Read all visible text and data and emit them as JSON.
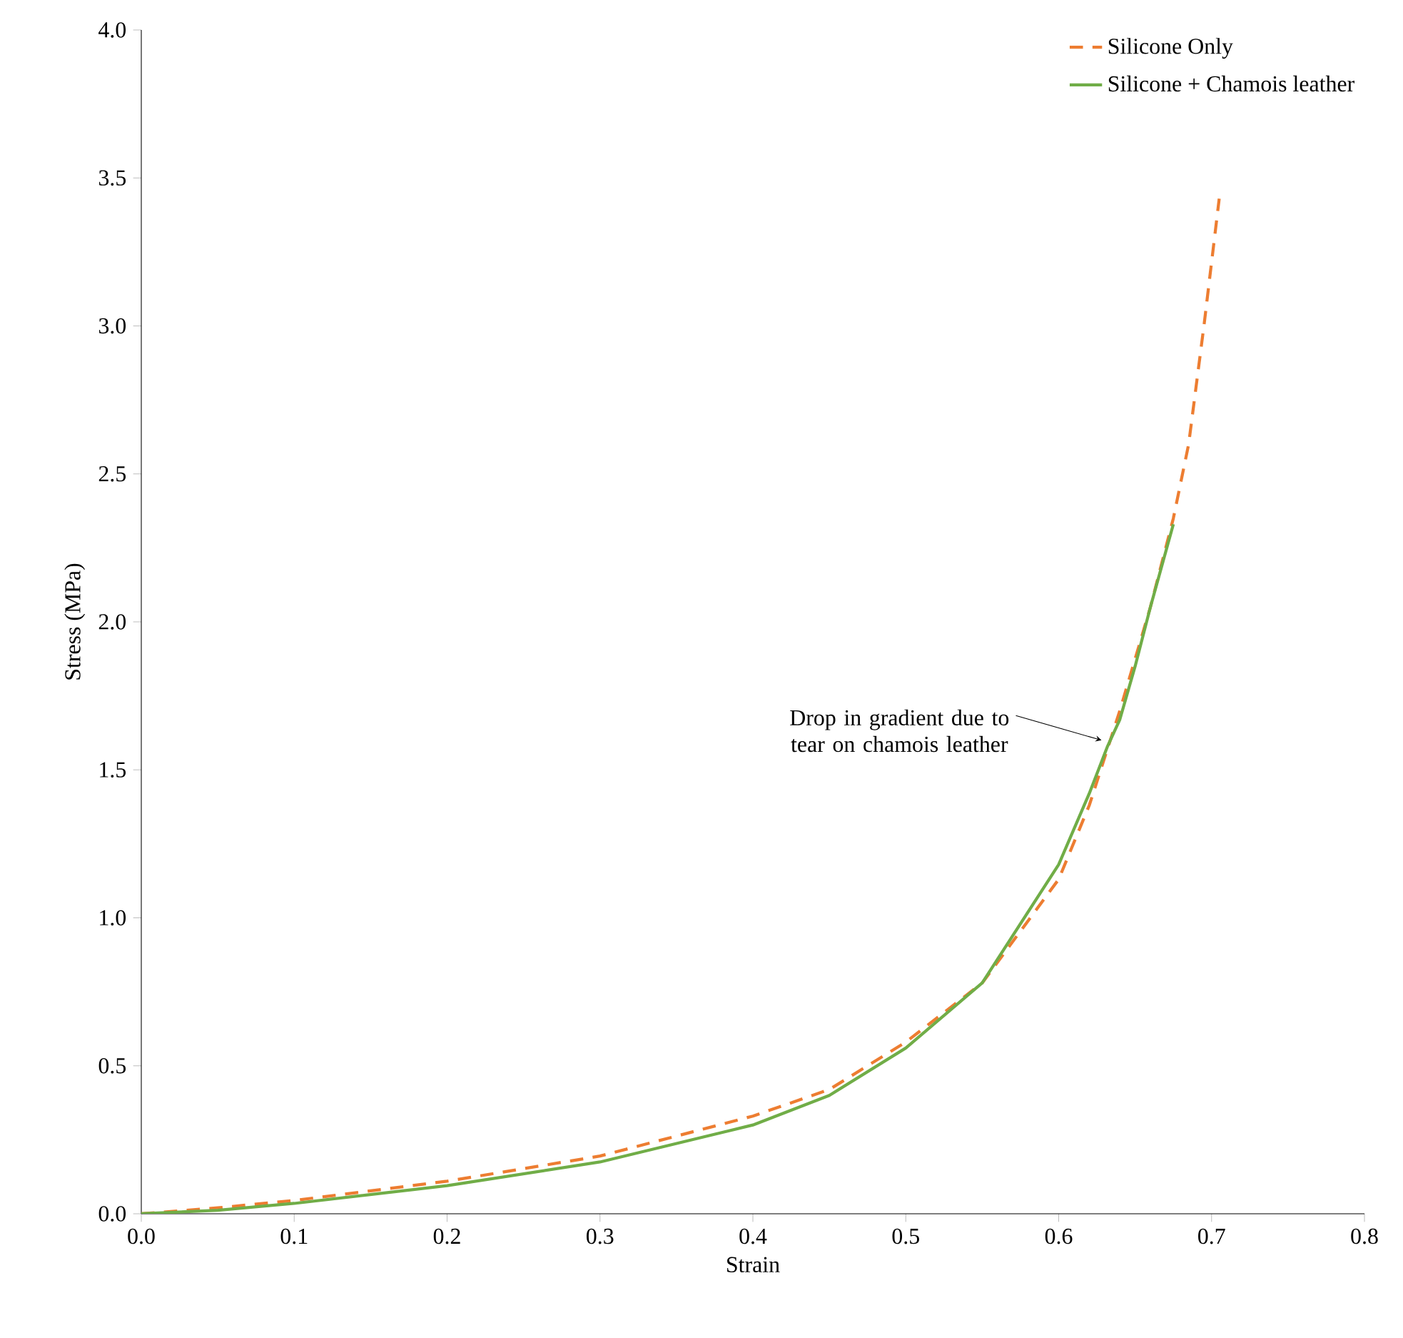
{
  "chart_data": {
    "type": "line",
    "xlabel": "Strain",
    "ylabel": "Stress (MPa)",
    "xlim": [
      0,
      0.8
    ],
    "ylim": [
      0,
      4
    ],
    "xticks": [
      {
        "value": 0,
        "label": "0.0"
      },
      {
        "value": 0.1,
        "label": "0.1"
      },
      {
        "value": 0.2,
        "label": "0.2"
      },
      {
        "value": 0.3,
        "label": "0.3"
      },
      {
        "value": 0.4,
        "label": "0.4"
      },
      {
        "value": 0.5,
        "label": "0.5"
      },
      {
        "value": 0.6,
        "label": "0.6"
      },
      {
        "value": 0.7,
        "label": "0.7"
      },
      {
        "value": 0.8,
        "label": "0.8"
      }
    ],
    "yticks": [
      {
        "value": 0,
        "label": "0.0"
      },
      {
        "value": 0.5,
        "label": "0.5"
      },
      {
        "value": 1,
        "label": "1.0"
      },
      {
        "value": 1.5,
        "label": "1.5"
      },
      {
        "value": 2,
        "label": "2.0"
      },
      {
        "value": 2.5,
        "label": "2.5"
      },
      {
        "value": 3,
        "label": "3.0"
      },
      {
        "value": 3.5,
        "label": "3.5"
      },
      {
        "value": 4,
        "label": "4.0"
      }
    ],
    "grid": false,
    "legend": "top right",
    "marker": "none",
    "series": [
      {
        "name": "Silicone Only",
        "color": "#ed7d31",
        "line_style": "dashed",
        "x": [
          0,
          0.05,
          0.1,
          0.2,
          0.3,
          0.4,
          0.45,
          0.5,
          0.55,
          0.6,
          0.62,
          0.64,
          0.66,
          0.675,
          0.685,
          0.695,
          0.705
        ],
        "values": [
          0,
          0.02,
          0.045,
          0.11,
          0.195,
          0.33,
          0.42,
          0.58,
          0.78,
          1.13,
          1.38,
          1.7,
          2.05,
          2.35,
          2.6,
          3.0,
          3.43
        ]
      },
      {
        "name": "Silicone + Chamois leather",
        "color": "#70ad47",
        "line_style": "solid",
        "x": [
          0,
          0.05,
          0.1,
          0.2,
          0.3,
          0.4,
          0.45,
          0.5,
          0.55,
          0.6,
          0.62,
          0.632,
          0.64,
          0.65,
          0.66,
          0.675
        ],
        "values": [
          0,
          0.012,
          0.035,
          0.095,
          0.175,
          0.3,
          0.4,
          0.56,
          0.78,
          1.18,
          1.42,
          1.58,
          1.67,
          1.85,
          2.05,
          2.33
        ]
      }
    ],
    "annotations": [
      {
        "text": "Drop in gradient due to tear on chamois leather",
        "x": 0.628,
        "y": 1.6
      }
    ]
  }
}
